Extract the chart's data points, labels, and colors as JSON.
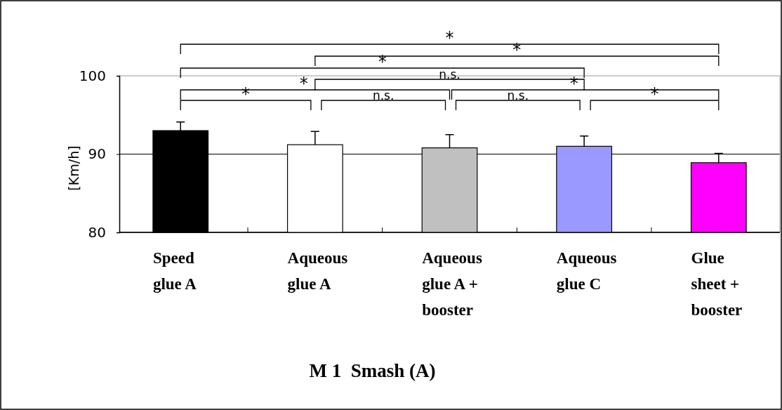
{
  "chart_data": {
    "type": "bar",
    "title": "M 1  Smash (A)",
    "ylabel": "[Km/h]",
    "categories": [
      "Speed glue A",
      "Aqueous glue A",
      "Aqueous glue A + booster",
      "Aqueous glue C",
      "Glue sheet + booster"
    ],
    "values": [
      93.0,
      91.2,
      90.8,
      91.0,
      88.9
    ],
    "errors": [
      [
        93.0,
        94.1
      ],
      [
        91.2,
        92.9
      ],
      [
        90.8,
        92.5
      ],
      [
        91.0,
        92.3
      ],
      [
        88.9,
        90.1
      ]
    ],
    "colors": [
      "#000000",
      "#ffffff",
      "#c0c0c0",
      "#9999ff",
      "#ff00ff"
    ],
    "ylim": [
      80,
      100
    ],
    "yticks": [
      80,
      90,
      100
    ],
    "grid": "y",
    "annotations": [
      "*",
      "*",
      "*",
      "n.s.",
      "*",
      "*",
      "*",
      "n.s.",
      "n.s.",
      "*"
    ]
  }
}
